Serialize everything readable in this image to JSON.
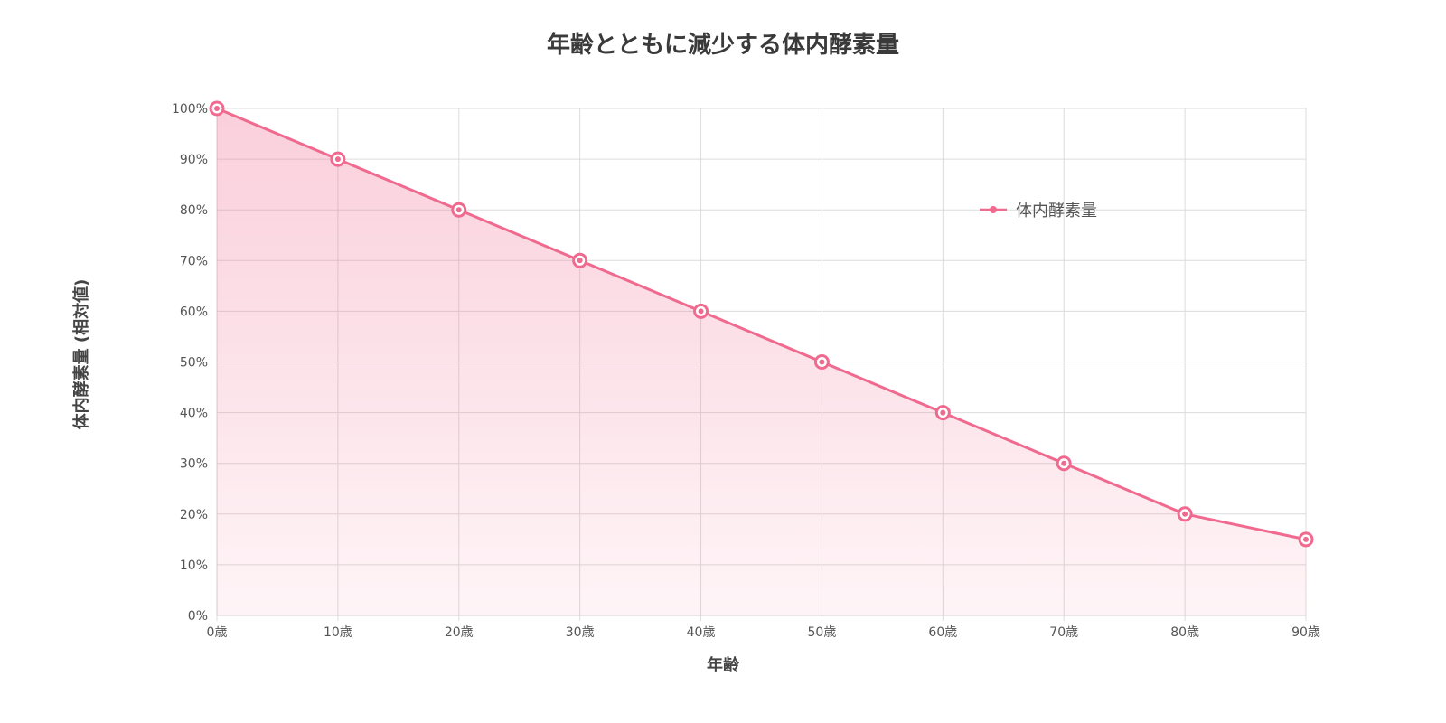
{
  "chart_data": {
    "type": "area",
    "title": "年齢とともに減少する体内酵素量",
    "xlabel": "年齢",
    "ylabel": "体内酵素量 (相対値)",
    "categories": [
      "0歳",
      "10歳",
      "20歳",
      "30歳",
      "40歳",
      "50歳",
      "60歳",
      "70歳",
      "80歳",
      "90歳"
    ],
    "series": [
      {
        "name": "体内酵素量",
        "values": [
          100,
          90,
          80,
          70,
          60,
          50,
          40,
          30,
          20,
          15
        ],
        "color": "#f06a8f"
      }
    ],
    "ylim": [
      0,
      100
    ],
    "yticks": [
      "0%",
      "10%",
      "20%",
      "30%",
      "40%",
      "50%",
      "60%",
      "70%",
      "80%",
      "90%",
      "100%"
    ],
    "grid": true,
    "legend_position": "top-right"
  }
}
